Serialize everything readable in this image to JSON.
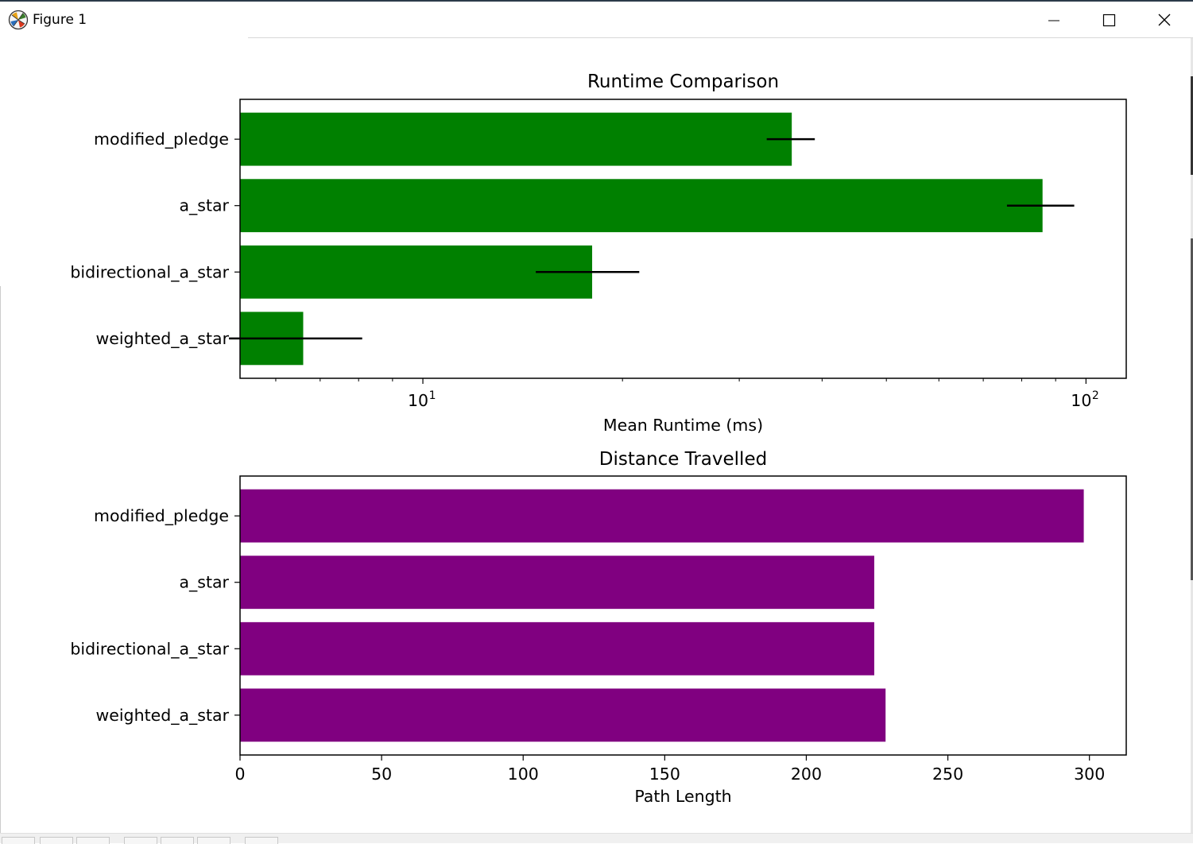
{
  "window": {
    "title": "Figure 1",
    "controls": {
      "minimize": "minimize-icon",
      "maximize": "maximize-icon",
      "close": "close-icon"
    }
  },
  "chart_data": [
    {
      "type": "bar",
      "orientation": "horizontal",
      "title": "Runtime Comparison",
      "xlabel": "Mean Runtime (ms)",
      "ylabel": "",
      "xscale": "log",
      "xlim": [
        5.3,
        115
      ],
      "xticks": [
        {
          "value": 10,
          "base": "10",
          "exp": "1"
        },
        {
          "value": 100,
          "base": "10",
          "exp": "2"
        }
      ],
      "categories": [
        "modified_pledge",
        "a_star",
        "bidirectional_a_star",
        "weighted_a_star"
      ],
      "values": [
        36.0,
        86.0,
        18.0,
        6.6
      ],
      "error": [
        3.0,
        10.0,
        3.2,
        1.5
      ],
      "color": "#008000",
      "error_color": "#000000",
      "grid": false
    },
    {
      "type": "bar",
      "orientation": "horizontal",
      "title": "Distance Travelled",
      "xlabel": "Path Length",
      "ylabel": "",
      "xscale": "linear",
      "xlim": [
        0,
        313
      ],
      "xticks": [
        0,
        50,
        100,
        150,
        200,
        250,
        300
      ],
      "categories": [
        "modified_pledge",
        "a_star",
        "bidirectional_a_star",
        "weighted_a_star"
      ],
      "values": [
        298,
        224,
        224,
        228
      ],
      "color": "#800080",
      "grid": false
    }
  ]
}
